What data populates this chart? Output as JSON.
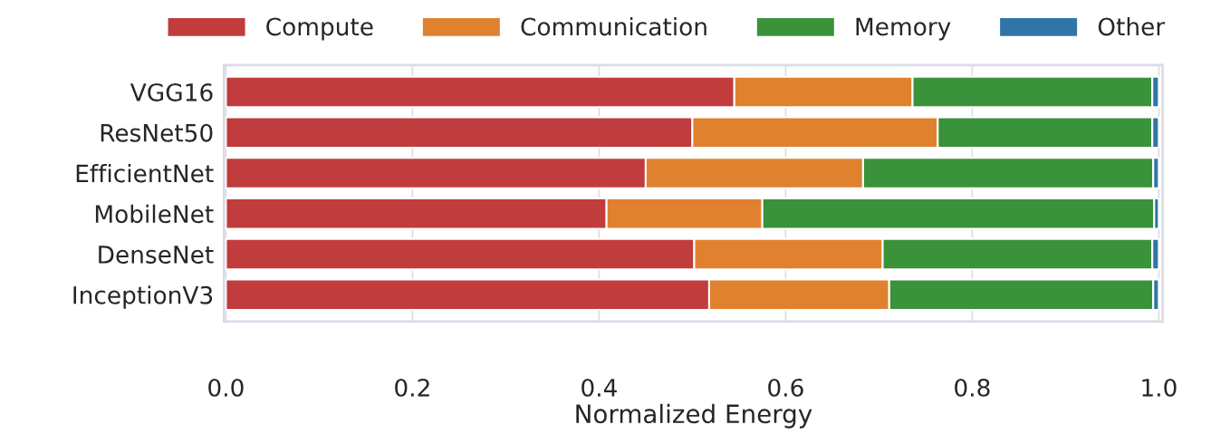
{
  "chart_data": {
    "type": "bar",
    "orientation": "horizontal",
    "stacked": true,
    "categories": [
      "VGG16",
      "ResNet50",
      "EfficientNet",
      "MobileNet",
      "DenseNet",
      "InceptionV3"
    ],
    "series": [
      {
        "name": "Compute",
        "color": "#c13c3c",
        "values": [
          0.545,
          0.5,
          0.45,
          0.408,
          0.502,
          0.518
        ]
      },
      {
        "name": "Communication",
        "color": "#e0812f",
        "values": [
          0.191,
          0.263,
          0.233,
          0.167,
          0.202,
          0.193
        ]
      },
      {
        "name": "Memory",
        "color": "#3a923a",
        "values": [
          0.257,
          0.23,
          0.311,
          0.42,
          0.289,
          0.283
        ]
      },
      {
        "name": "Other",
        "color": "#2f76a6",
        "values": [
          0.007,
          0.007,
          0.006,
          0.005,
          0.007,
          0.006
        ]
      }
    ],
    "xlabel": "Normalized Energy",
    "xlim": [
      -0.002,
      1.004
    ],
    "xticks": [
      {
        "value": 0,
        "label": "0.0"
      },
      {
        "value": 0.2,
        "label": "0.2"
      },
      {
        "value": 0.4,
        "label": "0.4"
      },
      {
        "value": 0.6,
        "label": "0.6"
      },
      {
        "value": 0.8,
        "label": "0.8"
      },
      {
        "value": 1.0,
        "label": "1.0"
      }
    ],
    "grid": "x",
    "legend": "top"
  }
}
